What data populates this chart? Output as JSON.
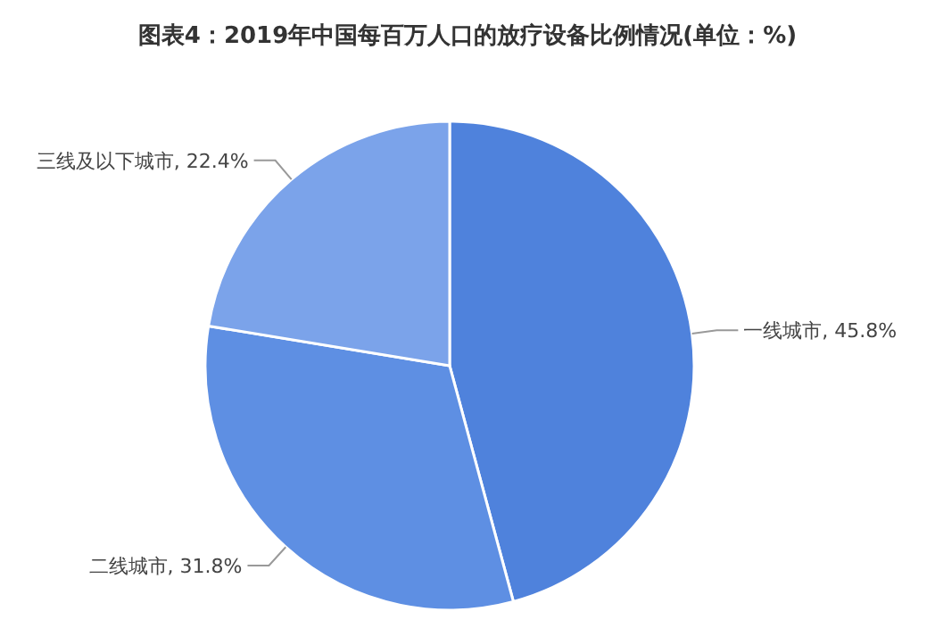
{
  "chart_data": {
    "type": "pie",
    "title": "图表4：2019年中国每百万人口的放疗设备比例情况(单位：%)",
    "categories": [
      "一线城市",
      "二线城市",
      "三线及以下城市"
    ],
    "values": [
      45.8,
      31.8,
      22.4
    ],
    "value_labels": [
      "45.8%",
      "31.8%",
      "22.4%"
    ],
    "colors": [
      "#4f82dc",
      "#5e8fe3",
      "#7ba3ea"
    ],
    "legend": false
  }
}
